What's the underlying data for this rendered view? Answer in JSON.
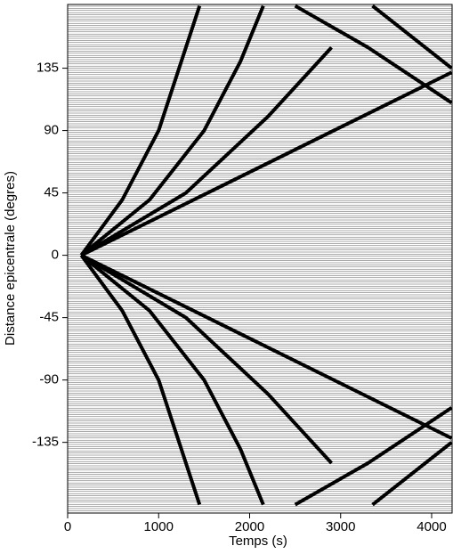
{
  "chart_data": {
    "type": "line",
    "xlabel": "Temps (s)",
    "ylabel": "Distance epicentrale (degres)",
    "xlim": [
      0,
      4225
    ],
    "ylim": [
      -186,
      181
    ],
    "xticks": [
      0,
      1000,
      2000,
      3000,
      4000
    ],
    "yticks": [
      -135,
      -90,
      -45,
      0,
      45,
      90,
      135
    ],
    "series": [
      {
        "color": "#000000",
        "x": [
          150,
          4220
        ],
        "values": [
          0,
          132
        ]
      },
      {
        "color": "#000000",
        "x": [
          150,
          4220
        ],
        "values": [
          0,
          -132
        ]
      },
      {
        "color": "#000000",
        "x": [
          150,
          600,
          1000,
          1250,
          1450
        ],
        "values": [
          0,
          40,
          90,
          140,
          180
        ]
      },
      {
        "color": "#000000",
        "x": [
          150,
          600,
          1000,
          1250,
          1450
        ],
        "values": [
          0,
          -40,
          -90,
          -140,
          -180
        ]
      },
      {
        "color": "#000000",
        "x": [
          150,
          900,
          1500,
          1900,
          2150
        ],
        "values": [
          0,
          40,
          90,
          140,
          180
        ]
      },
      {
        "color": "#000000",
        "x": [
          150,
          900,
          1500,
          1900,
          2150
        ],
        "values": [
          0,
          -40,
          -90,
          -140,
          -180
        ]
      },
      {
        "color": "#000000",
        "x": [
          150,
          1300,
          2200,
          2900
        ],
        "values": [
          0,
          45,
          100,
          150
        ]
      },
      {
        "color": "#000000",
        "x": [
          150,
          1300,
          2200,
          2900
        ],
        "values": [
          0,
          -45,
          -100,
          -150
        ]
      },
      {
        "color": "#000000",
        "x": [
          3350,
          4220
        ],
        "values": [
          180,
          135
        ]
      },
      {
        "color": "#000000",
        "x": [
          3350,
          4220
        ],
        "values": [
          -180,
          -135
        ]
      },
      {
        "color": "#000000",
        "x": [
          2500,
          3300,
          4220
        ],
        "values": [
          180,
          150,
          110
        ]
      },
      {
        "color": "#000000",
        "x": [
          2500,
          3300,
          4220
        ],
        "values": [
          -180,
          -150,
          -110
        ]
      }
    ]
  }
}
